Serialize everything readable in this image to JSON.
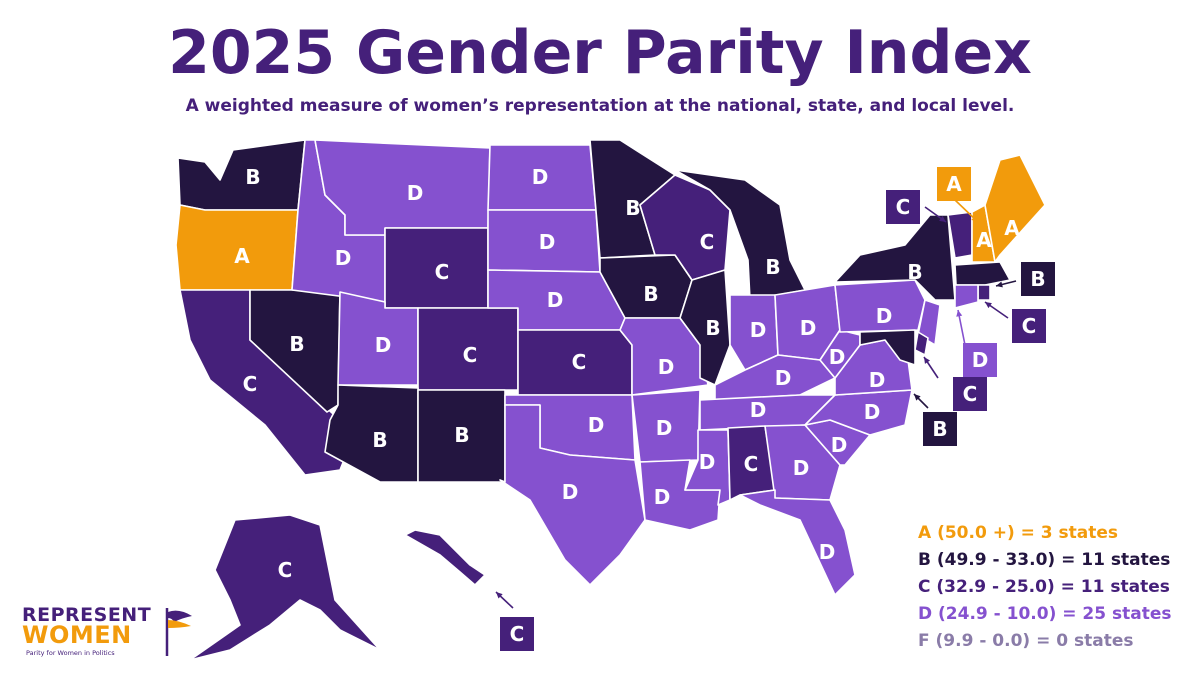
{
  "title": "2025 Gender Parity Index",
  "subtitle": "A weighted measure of women’s representation at the national, state, and local level.",
  "colors": {
    "A": "#f29b0c",
    "B": "#231540",
    "C": "#45207a",
    "D": "#8551cf",
    "F": "#8a7ca8"
  },
  "legend": [
    {
      "grade": "A",
      "label": "A (50.0 +) = 3 states"
    },
    {
      "grade": "B",
      "label": "B (49.9 - 33.0) = 11 states"
    },
    {
      "grade": "C",
      "label": "C (32.9 - 25.0) = 11 states"
    },
    {
      "grade": "D",
      "label": "D (24.9 - 10.0) = 25 states"
    },
    {
      "grade": "F",
      "label": "F (9.9 - 0.0) = 0 states"
    }
  ],
  "states": [
    {
      "id": "WA",
      "grade": "B"
    },
    {
      "id": "OR",
      "grade": "A"
    },
    {
      "id": "CA",
      "grade": "C"
    },
    {
      "id": "NV",
      "grade": "B"
    },
    {
      "id": "ID",
      "grade": "D"
    },
    {
      "id": "MT",
      "grade": "D"
    },
    {
      "id": "WY",
      "grade": "C"
    },
    {
      "id": "UT",
      "grade": "D"
    },
    {
      "id": "CO",
      "grade": "C"
    },
    {
      "id": "AZ",
      "grade": "B"
    },
    {
      "id": "NM",
      "grade": "B"
    },
    {
      "id": "ND",
      "grade": "D"
    },
    {
      "id": "SD",
      "grade": "D"
    },
    {
      "id": "NE",
      "grade": "D"
    },
    {
      "id": "KS",
      "grade": "C"
    },
    {
      "id": "OK",
      "grade": "D"
    },
    {
      "id": "TX",
      "grade": "D"
    },
    {
      "id": "MN",
      "grade": "B"
    },
    {
      "id": "IA",
      "grade": "B"
    },
    {
      "id": "MO",
      "grade": "D"
    },
    {
      "id": "AR",
      "grade": "D"
    },
    {
      "id": "LA",
      "grade": "D"
    },
    {
      "id": "WI",
      "grade": "C"
    },
    {
      "id": "IL",
      "grade": "B"
    },
    {
      "id": "MI",
      "grade": "B"
    },
    {
      "id": "IN",
      "grade": "D"
    },
    {
      "id": "OH",
      "grade": "D"
    },
    {
      "id": "KY",
      "grade": "D"
    },
    {
      "id": "TN",
      "grade": "D"
    },
    {
      "id": "MS",
      "grade": "D"
    },
    {
      "id": "AL",
      "grade": "C"
    },
    {
      "id": "GA",
      "grade": "D"
    },
    {
      "id": "FL",
      "grade": "D"
    },
    {
      "id": "SC",
      "grade": "D"
    },
    {
      "id": "NC",
      "grade": "D"
    },
    {
      "id": "VA",
      "grade": "D"
    },
    {
      "id": "WV",
      "grade": "D"
    },
    {
      "id": "PA",
      "grade": "D"
    },
    {
      "id": "NY",
      "grade": "B"
    },
    {
      "id": "VT",
      "grade": "C"
    },
    {
      "id": "NH",
      "grade": "A"
    },
    {
      "id": "ME",
      "grade": "A"
    },
    {
      "id": "MA",
      "grade": "B"
    },
    {
      "id": "RI",
      "grade": "C"
    },
    {
      "id": "CT",
      "grade": "D"
    },
    {
      "id": "NJ",
      "grade": "D"
    },
    {
      "id": "DE",
      "grade": "C"
    },
    {
      "id": "MD",
      "grade": "B"
    },
    {
      "id": "AK",
      "grade": "C"
    },
    {
      "id": "HI",
      "grade": "C"
    }
  ],
  "logo": {
    "line1": "REPRESENT",
    "line2": "WOMEN",
    "tagline": "Parity for Women in Politics"
  }
}
